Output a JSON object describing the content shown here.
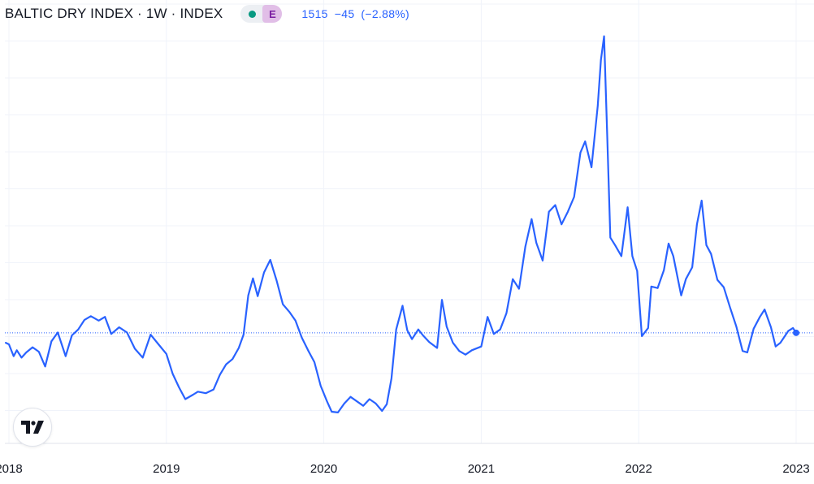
{
  "header": {
    "title": "BALTIC DRY INDEX · 1W · INDEX",
    "badge": "E",
    "last": "1515",
    "change": "−45",
    "change_pct": "(−2.88%)"
  },
  "icons": {
    "status": "market-status-dot-icon",
    "logo": "tradingview-logo-icon"
  },
  "colors": {
    "line": "#2962ff",
    "grid": "#f0f3fa",
    "text": "#131722",
    "status_dot": "#089981",
    "badge_bg": "#e1bee7",
    "badge_fg": "#7b1fa2"
  },
  "chart_data": {
    "type": "line",
    "x_tick_labels": [
      "2018",
      "2019",
      "2020",
      "2021",
      "2022",
      "2023"
    ],
    "x_ticks": [
      2018.0,
      2019.0,
      2020.0,
      2021.0,
      2022.0,
      2023.0
    ],
    "xlim": [
      2017.98,
      2023.12
    ],
    "ylim": [
      0,
      5800
    ],
    "grid": true,
    "last_value": 1515,
    "series": [
      {
        "values": [
          [
            2017.98,
            1380
          ],
          [
            2018.0,
            1360
          ],
          [
            2018.03,
            1200
          ],
          [
            2018.05,
            1280
          ],
          [
            2018.08,
            1180
          ],
          [
            2018.11,
            1250
          ],
          [
            2018.15,
            1320
          ],
          [
            2018.19,
            1260
          ],
          [
            2018.23,
            1060
          ],
          [
            2018.27,
            1400
          ],
          [
            2018.31,
            1520
          ],
          [
            2018.36,
            1200
          ],
          [
            2018.4,
            1480
          ],
          [
            2018.44,
            1560
          ],
          [
            2018.48,
            1690
          ],
          [
            2018.52,
            1740
          ],
          [
            2018.57,
            1680
          ],
          [
            2018.61,
            1730
          ],
          [
            2018.65,
            1500
          ],
          [
            2018.7,
            1590
          ],
          [
            2018.75,
            1520
          ],
          [
            2018.8,
            1300
          ],
          [
            2018.85,
            1180
          ],
          [
            2018.9,
            1490
          ],
          [
            2018.95,
            1360
          ],
          [
            2019.0,
            1230
          ],
          [
            2019.04,
            960
          ],
          [
            2019.08,
            780
          ],
          [
            2019.12,
            620
          ],
          [
            2019.17,
            680
          ],
          [
            2019.2,
            720
          ],
          [
            2019.25,
            700
          ],
          [
            2019.3,
            750
          ],
          [
            2019.34,
            950
          ],
          [
            2019.38,
            1090
          ],
          [
            2019.42,
            1160
          ],
          [
            2019.46,
            1310
          ],
          [
            2019.49,
            1490
          ],
          [
            2019.52,
            2020
          ],
          [
            2019.55,
            2250
          ],
          [
            2019.58,
            2010
          ],
          [
            2019.62,
            2330
          ],
          [
            2019.66,
            2500
          ],
          [
            2019.7,
            2220
          ],
          [
            2019.74,
            1900
          ],
          [
            2019.78,
            1800
          ],
          [
            2019.82,
            1680
          ],
          [
            2019.86,
            1450
          ],
          [
            2019.9,
            1280
          ],
          [
            2019.94,
            1120
          ],
          [
            2019.98,
            800
          ],
          [
            2020.02,
            590
          ],
          [
            2020.05,
            450
          ],
          [
            2020.09,
            440
          ],
          [
            2020.13,
            560
          ],
          [
            2020.17,
            650
          ],
          [
            2020.21,
            590
          ],
          [
            2020.25,
            530
          ],
          [
            2020.29,
            620
          ],
          [
            2020.33,
            560
          ],
          [
            2020.37,
            460
          ],
          [
            2020.4,
            550
          ],
          [
            2020.43,
            900
          ],
          [
            2020.46,
            1560
          ],
          [
            2020.5,
            1880
          ],
          [
            2020.53,
            1550
          ],
          [
            2020.56,
            1430
          ],
          [
            2020.6,
            1560
          ],
          [
            2020.63,
            1480
          ],
          [
            2020.67,
            1390
          ],
          [
            2020.72,
            1310
          ],
          [
            2020.75,
            1960
          ],
          [
            2020.78,
            1600
          ],
          [
            2020.82,
            1380
          ],
          [
            2020.86,
            1270
          ],
          [
            2020.9,
            1220
          ],
          [
            2020.94,
            1280
          ],
          [
            2021.0,
            1330
          ],
          [
            2021.04,
            1730
          ],
          [
            2021.08,
            1500
          ],
          [
            2021.12,
            1560
          ],
          [
            2021.16,
            1780
          ],
          [
            2021.2,
            2240
          ],
          [
            2021.24,
            2110
          ],
          [
            2021.28,
            2680
          ],
          [
            2021.32,
            3050
          ],
          [
            2021.35,
            2730
          ],
          [
            2021.39,
            2490
          ],
          [
            2021.43,
            3150
          ],
          [
            2021.47,
            3240
          ],
          [
            2021.51,
            2980
          ],
          [
            2021.55,
            3150
          ],
          [
            2021.59,
            3350
          ],
          [
            2021.63,
            3950
          ],
          [
            2021.66,
            4100
          ],
          [
            2021.7,
            3750
          ],
          [
            2021.74,
            4580
          ],
          [
            2021.76,
            5200
          ],
          [
            2021.78,
            5520
          ],
          [
            2021.8,
            4200
          ],
          [
            2021.82,
            2800
          ],
          [
            2021.85,
            2700
          ],
          [
            2021.89,
            2550
          ],
          [
            2021.93,
            3210
          ],
          [
            2021.96,
            2550
          ],
          [
            2021.99,
            2350
          ],
          [
            2022.02,
            1470
          ],
          [
            2022.06,
            1580
          ],
          [
            2022.08,
            2140
          ],
          [
            2022.12,
            2120
          ],
          [
            2022.16,
            2360
          ],
          [
            2022.19,
            2720
          ],
          [
            2022.22,
            2550
          ],
          [
            2022.27,
            2020
          ],
          [
            2022.3,
            2240
          ],
          [
            2022.34,
            2400
          ],
          [
            2022.37,
            2980
          ],
          [
            2022.4,
            3300
          ],
          [
            2022.43,
            2700
          ],
          [
            2022.46,
            2580
          ],
          [
            2022.5,
            2230
          ],
          [
            2022.54,
            2130
          ],
          [
            2022.58,
            1860
          ],
          [
            2022.62,
            1600
          ],
          [
            2022.66,
            1270
          ],
          [
            2022.69,
            1250
          ],
          [
            2022.73,
            1570
          ],
          [
            2022.77,
            1730
          ],
          [
            2022.8,
            1830
          ],
          [
            2022.84,
            1590
          ],
          [
            2022.87,
            1330
          ],
          [
            2022.9,
            1380
          ],
          [
            2022.95,
            1540
          ],
          [
            2022.98,
            1580
          ],
          [
            2023.0,
            1515
          ]
        ]
      }
    ]
  }
}
